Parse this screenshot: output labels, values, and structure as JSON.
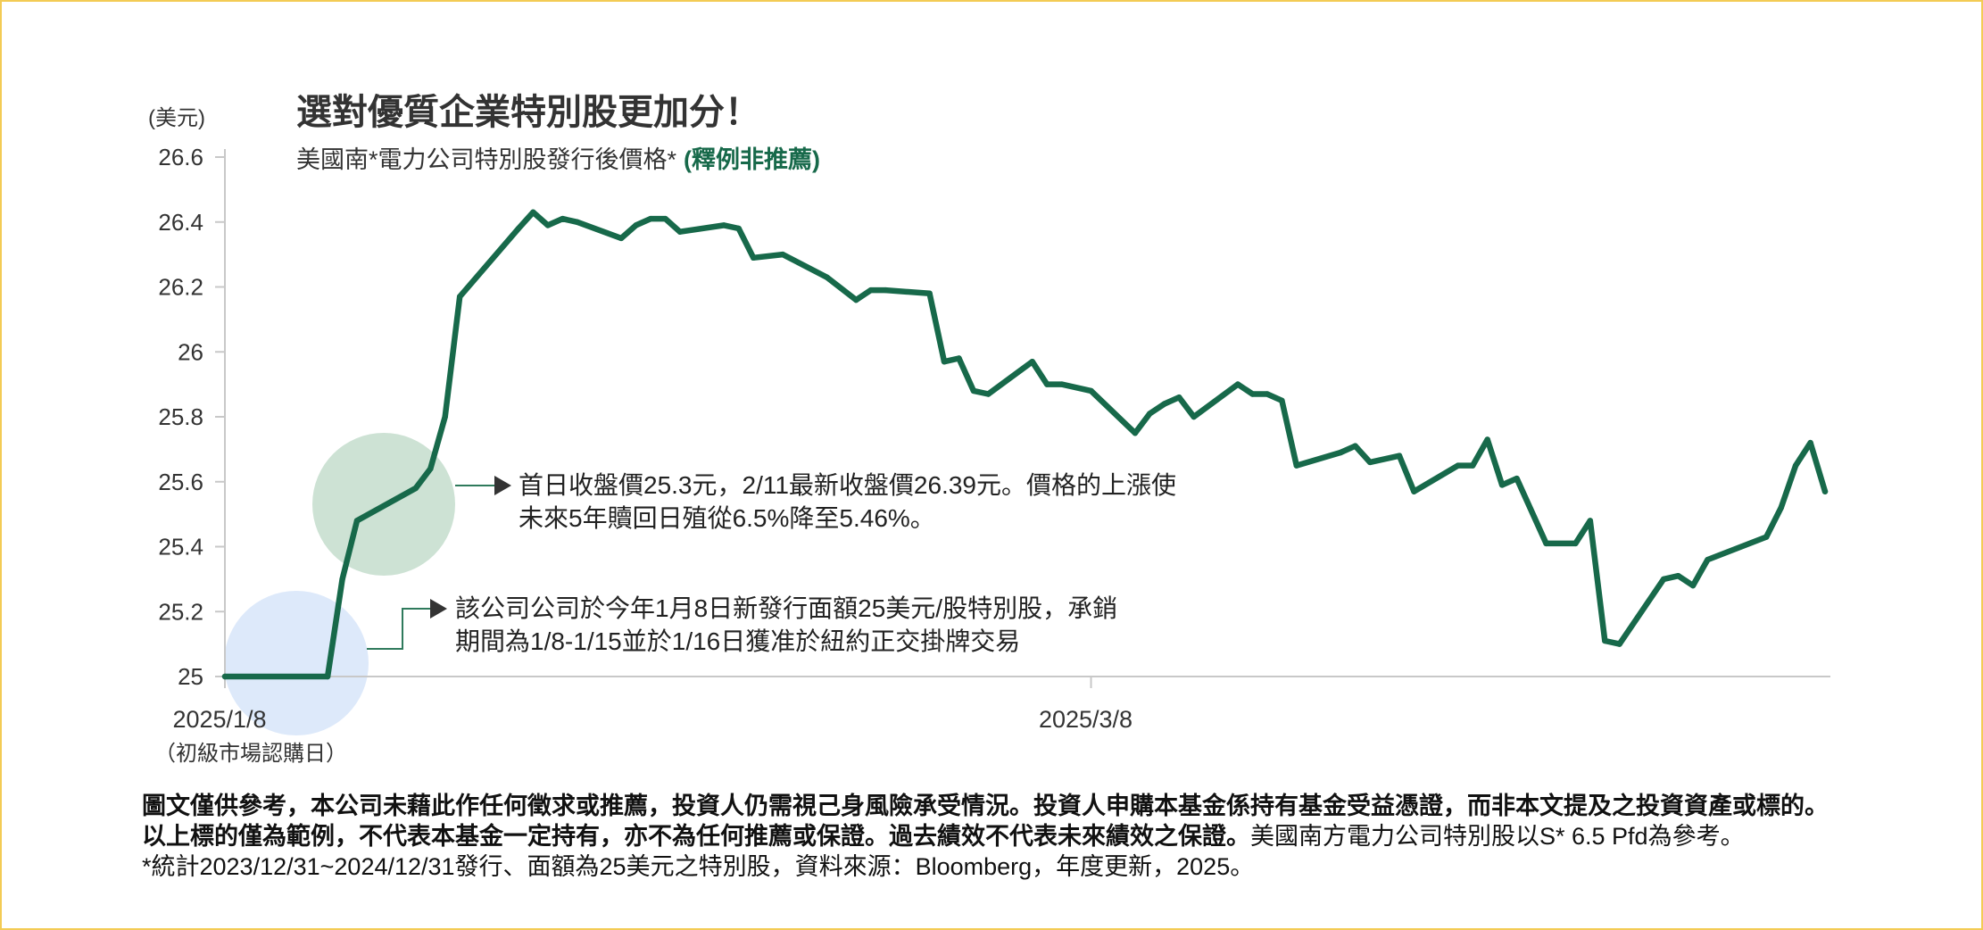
{
  "colors": {
    "text": "#333333",
    "accent": "#17694a",
    "axis": "#c8c8c8",
    "border": "#f3cb55",
    "arrow": "#333333",
    "connector": "#2f7a5c"
  },
  "chart_data": {
    "type": "line",
    "title": "選對優質企業特別股更加分！",
    "subtitle": "美國南*電力公司特別股發行後價格*",
    "subtitle_note": "(釋例非推薦)",
    "ylabel": "(美元)",
    "xlabel": "",
    "ylim": [
      25,
      26.6
    ],
    "yticks": [
      26.6,
      26.4,
      26.2,
      26,
      25.8,
      25.6,
      25.4,
      25.2,
      25
    ],
    "xlim": [
      "2025/1/8",
      "2025/4/27"
    ],
    "xticks": [
      "2025/1/8",
      "2025/3/8"
    ],
    "xtick_sublabel": "（初級市場認購日）",
    "grid": false,
    "legend": "none",
    "x": [
      "2025/1/8",
      "2025/1/15",
      "2025/1/16",
      "2025/1/17",
      "2025/1/21",
      "2025/1/22",
      "2025/1/23",
      "2025/1/24",
      "2025/1/28",
      "2025/1/29",
      "2025/1/30",
      "2025/1/31",
      "2025/2/1",
      "2025/2/4",
      "2025/2/5",
      "2025/2/6",
      "2025/2/7",
      "2025/2/8",
      "2025/2/11",
      "2025/2/12",
      "2025/2/13",
      "2025/2/15",
      "2025/2/18",
      "2025/2/20",
      "2025/2/21",
      "2025/2/22",
      "2025/2/25",
      "2025/2/26",
      "2025/2/27",
      "2025/2/28",
      "2025/3/1",
      "2025/3/4",
      "2025/3/5",
      "2025/3/6",
      "2025/3/8",
      "2025/3/11",
      "2025/3/12",
      "2025/3/13",
      "2025/3/14",
      "2025/3/15",
      "2025/3/18",
      "2025/3/19",
      "2025/3/20",
      "2025/3/21",
      "2025/3/22",
      "2025/3/25",
      "2025/3/26",
      "2025/3/27",
      "2025/3/29",
      "2025/3/30",
      "2025/4/2",
      "2025/4/3",
      "2025/4/4",
      "2025/4/5",
      "2025/4/6",
      "2025/4/8",
      "2025/4/10",
      "2025/4/11",
      "2025/4/12",
      "2025/4/13",
      "2025/4/16",
      "2025/4/17",
      "2025/4/18",
      "2025/4/19",
      "2025/4/23",
      "2025/4/24",
      "2025/4/25",
      "2025/4/26",
      "2025/4/27"
    ],
    "series": [
      {
        "color": "#17694a",
        "values": [
          25.0,
          25.0,
          25.3,
          25.48,
          25.58,
          25.64,
          25.8,
          26.17,
          26.38,
          26.43,
          26.39,
          26.41,
          26.4,
          26.35,
          26.39,
          26.41,
          26.41,
          26.37,
          26.39,
          26.38,
          26.29,
          26.3,
          26.23,
          26.16,
          26.19,
          26.19,
          26.18,
          25.97,
          25.98,
          25.88,
          25.87,
          25.97,
          25.9,
          25.9,
          25.88,
          25.75,
          25.81,
          25.84,
          25.86,
          25.8,
          25.9,
          25.87,
          25.87,
          25.85,
          25.65,
          25.69,
          25.71,
          25.66,
          25.68,
          25.57,
          25.65,
          25.65,
          25.73,
          25.59,
          25.61,
          25.41,
          25.41,
          25.48,
          25.11,
          25.1,
          25.3,
          25.31,
          25.28,
          25.36,
          25.43,
          25.52,
          25.65,
          25.72,
          25.57
        ]
      }
    ],
    "annotations": [
      {
        "lines": [
          "首日收盤價25.3元，2/11最新收盤價26.39元。價格的上漲使",
          "未來5年贖回日殖從6.5%降至5.46%。"
        ],
        "highlight_color": "#cde2d4"
      },
      {
        "lines": [
          "該公司公司於今年1月8日新發行面額25美元/股特別股，承銷",
          "期間為1/8-1/15並於1/16日獲准於紐約正交掛牌交易"
        ],
        "highlight_color": "#dde9fa"
      }
    ]
  },
  "footer": {
    "disclaimer_bold": "圖文僅供參考，本公司未藉此作任何徵求或推薦，投資人仍需視己身風險承受情況。投資人申購本基金係持有基金受益憑證，而非本文提及之投資資產或標的。以上標的僅為範例，不代表本基金一定持有，亦不為任何推薦或保證。過去績效不代表未來績效之保證。",
    "disclaimer_normal": "美國南方電力公司特別股以S* 6.5 Pfd為參考。",
    "note": "*統計2023/12/31~2024/12/31發行、面額為25美元之特別股，資料來源：Bloomberg，年度更新，2025。"
  }
}
